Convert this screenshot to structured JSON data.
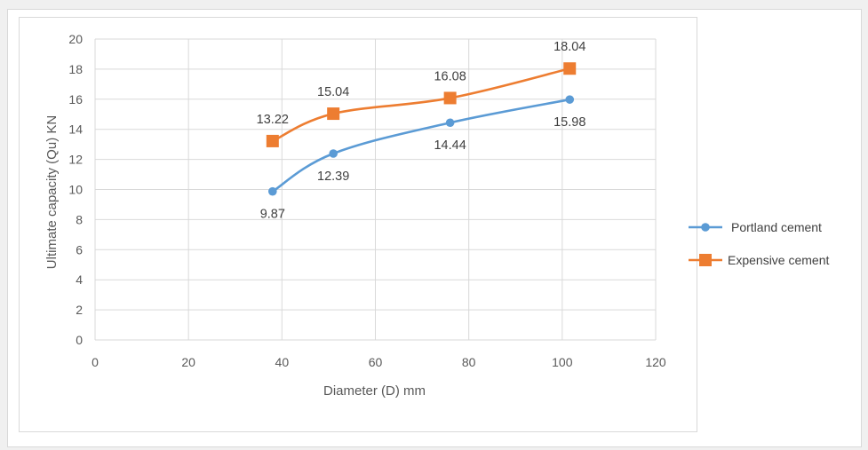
{
  "chart_data": {
    "type": "line",
    "xlabel": "Diameter  (D) mm",
    "ylabel": "Ultimate capacity (Qu) KN",
    "xlim": [
      0,
      120
    ],
    "ylim": [
      0,
      20
    ],
    "xticks": [
      0,
      20,
      40,
      60,
      80,
      100,
      120
    ],
    "yticks": [
      0,
      2,
      4,
      6,
      8,
      10,
      12,
      14,
      16,
      18,
      20
    ],
    "grid": true,
    "legend_position": "right",
    "series": [
      {
        "name": "Portland cement",
        "color": "#5b9bd5",
        "marker": "circle",
        "x": [
          38,
          51,
          76,
          101.6
        ],
        "values": [
          9.87,
          12.39,
          14.44,
          15.98
        ],
        "labels": [
          "9.87",
          "12.39",
          "14.44",
          "15.98"
        ],
        "label_position": "below"
      },
      {
        "name": "Expensive cement",
        "color": "#ed7d31",
        "marker": "square",
        "x": [
          38,
          51,
          76,
          101.6
        ],
        "values": [
          13.22,
          15.04,
          16.08,
          18.04
        ],
        "labels": [
          "13.22",
          "15.04",
          "16.08",
          "18.04"
        ],
        "label_position": "above"
      }
    ]
  }
}
